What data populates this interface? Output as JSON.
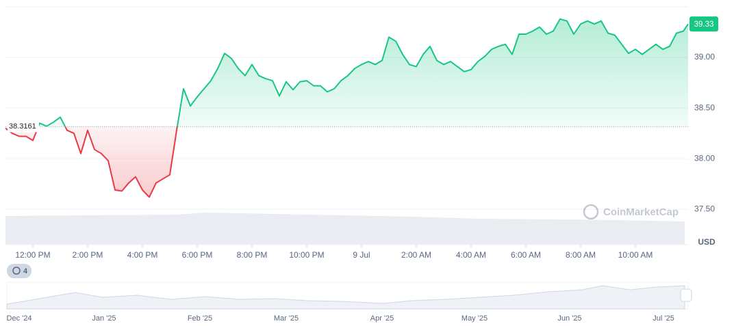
{
  "chart_data": {
    "type": "line",
    "currency": "USD",
    "watermark": "CoinMarketCap",
    "history_badge": "4",
    "baseline": 38.3161,
    "above_color": "#16c784",
    "below_color": "#ea3943",
    "grid": true,
    "xlim": [
      0,
      24.925
    ],
    "ylim": [
      37.15,
      39.5
    ],
    "xticks": [
      {
        "value": 1,
        "label": "12:00 PM"
      },
      {
        "value": 3,
        "label": "2:00 PM"
      },
      {
        "value": 5,
        "label": "4:00 PM"
      },
      {
        "value": 7,
        "label": "6:00 PM"
      },
      {
        "value": 9,
        "label": "8:00 PM"
      },
      {
        "value": 11,
        "label": "10:00 PM"
      },
      {
        "value": 13,
        "label": "9 Jul"
      },
      {
        "value": 15,
        "label": "2:00 AM"
      },
      {
        "value": 17,
        "label": "4:00 AM"
      },
      {
        "value": 19,
        "label": "6:00 AM"
      },
      {
        "value": 21,
        "label": "8:00 AM"
      },
      {
        "value": 23,
        "label": "10:00 AM"
      }
    ],
    "yticks": [
      {
        "value": 37.5,
        "label": "37.50"
      },
      {
        "value": 38,
        "label": "38.00"
      },
      {
        "value": 38.5,
        "label": "38.50"
      },
      {
        "value": 39,
        "label": "39.00"
      }
    ],
    "x": [
      0,
      0.25,
      0.5,
      0.75,
      1,
      1.25,
      1.5,
      1.75,
      2,
      2.25,
      2.5,
      2.75,
      3,
      3.25,
      3.5,
      3.75,
      4,
      4.25,
      4.5,
      4.75,
      5,
      5.25,
      5.5,
      5.75,
      6,
      6.25,
      6.5,
      6.75,
      7,
      7.25,
      7.5,
      7.75,
      8,
      8.25,
      8.5,
      8.75,
      9,
      9.25,
      9.5,
      9.75,
      10,
      10.25,
      10.5,
      10.75,
      11,
      11.25,
      11.5,
      11.75,
      12,
      12.25,
      12.5,
      12.75,
      13,
      13.25,
      13.5,
      13.75,
      14,
      14.25,
      14.5,
      14.75,
      15,
      15.25,
      15.5,
      15.75,
      16,
      16.25,
      16.5,
      16.75,
      17,
      17.25,
      17.5,
      17.75,
      18,
      18.25,
      18.5,
      18.75,
      19,
      19.25,
      19.5,
      19.75,
      20,
      20.25,
      20.5,
      20.75,
      21,
      21.25,
      21.5,
      21.75,
      22,
      22.25,
      22.5,
      22.75,
      23,
      23.25,
      23.5,
      23.75,
      24,
      24.25,
      24.5,
      24.75,
      24.925
    ],
    "series": [
      {
        "name": "Price",
        "values": [
          38.3,
          38.25,
          38.22,
          38.22,
          38.18,
          38.35,
          38.32,
          38.36,
          38.41,
          38.28,
          38.25,
          38.05,
          38.28,
          38.09,
          38.05,
          37.98,
          37.69,
          37.68,
          37.76,
          37.82,
          37.69,
          37.62,
          37.76,
          37.8,
          37.84,
          38.28,
          38.69,
          38.52,
          38.61,
          38.69,
          38.77,
          38.89,
          39.04,
          38.99,
          38.89,
          38.82,
          38.93,
          38.82,
          38.79,
          38.77,
          38.62,
          38.76,
          38.68,
          38.76,
          38.77,
          38.72,
          38.72,
          38.66,
          38.69,
          38.77,
          38.82,
          38.89,
          38.93,
          38.96,
          38.93,
          38.97,
          39.2,
          39.16,
          39.03,
          38.93,
          38.91,
          39.03,
          39.11,
          38.97,
          38.93,
          38.96,
          38.91,
          38.86,
          38.88,
          38.96,
          39.01,
          39.08,
          39.11,
          39.13,
          39.03,
          39.23,
          39.23,
          39.26,
          39.3,
          39.23,
          39.26,
          39.38,
          39.36,
          39.23,
          39.33,
          39.36,
          39.33,
          39.36,
          39.24,
          39.22,
          39.13,
          39.04,
          39.08,
          39.03,
          39.08,
          39.13,
          39.08,
          39.11,
          39.24,
          39.26,
          39.33
        ]
      }
    ],
    "navigator": {
      "labels": [
        "Dec '24",
        "Jan '25",
        "Feb '25",
        "Mar '25",
        "Apr '25",
        "May '25",
        "Jun '25",
        "Jul '25"
      ]
    }
  }
}
